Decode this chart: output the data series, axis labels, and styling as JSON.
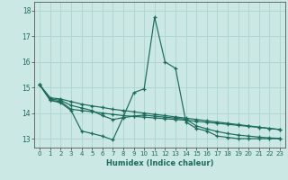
{
  "xlabel": "Humidex (Indice chaleur)",
  "background_color": "#cce8e4",
  "grid_color": "#b0d8d2",
  "line_color": "#1a6b5a",
  "xlim": [
    -0.5,
    23.5
  ],
  "ylim": [
    12.65,
    18.35
  ],
  "yticks": [
    13,
    14,
    15,
    16,
    17,
    18
  ],
  "xticks": [
    0,
    1,
    2,
    3,
    4,
    5,
    6,
    7,
    8,
    9,
    10,
    11,
    12,
    13,
    14,
    15,
    16,
    17,
    18,
    19,
    20,
    21,
    22,
    23
  ],
  "series": [
    [
      15.1,
      14.5,
      14.4,
      14.1,
      13.3,
      13.2,
      13.1,
      12.95,
      13.85,
      14.8,
      14.95,
      17.75,
      16.0,
      15.75,
      13.65,
      13.4,
      13.3,
      13.1,
      13.05,
      13.0,
      13.0,
      13.0,
      13.0,
      13.0
    ],
    [
      15.1,
      14.5,
      14.45,
      14.15,
      14.1,
      14.05,
      14.0,
      13.95,
      13.9,
      13.87,
      13.84,
      13.81,
      13.78,
      13.75,
      13.72,
      13.68,
      13.64,
      13.6,
      13.56,
      13.52,
      13.48,
      13.44,
      13.4,
      13.36
    ],
    [
      15.1,
      14.6,
      14.55,
      14.45,
      14.35,
      14.28,
      14.22,
      14.15,
      14.1,
      14.05,
      14.0,
      13.95,
      13.9,
      13.85,
      13.8,
      13.75,
      13.7,
      13.65,
      13.6,
      13.55,
      13.5,
      13.45,
      13.4,
      13.35
    ],
    [
      15.1,
      14.55,
      14.5,
      14.3,
      14.2,
      14.1,
      13.9,
      13.75,
      13.82,
      13.88,
      13.92,
      13.88,
      13.84,
      13.8,
      13.76,
      13.5,
      13.38,
      13.28,
      13.2,
      13.14,
      13.1,
      13.06,
      13.03,
      13.01
    ]
  ]
}
